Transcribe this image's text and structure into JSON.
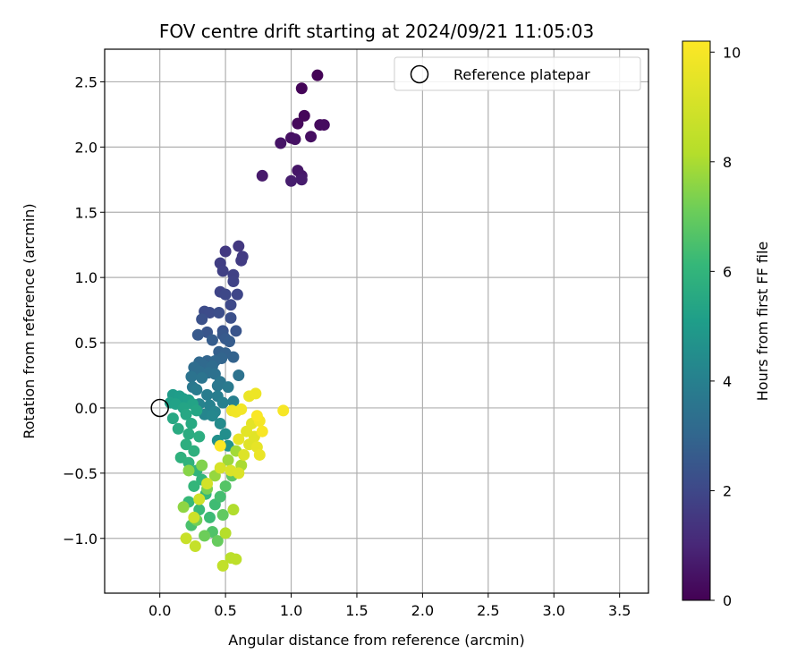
{
  "chart_data": {
    "type": "scatter",
    "title": "FOV centre drift starting at 2024/09/21 11:05:03",
    "xlabel": "Angular distance from reference (arcmin)",
    "ylabel": "Rotation from reference (arcmin)",
    "xlim": [
      -0.42,
      3.72
    ],
    "ylim": [
      -1.42,
      2.75
    ],
    "xticks": [
      "0.0",
      "0.5",
      "1.0",
      "1.5",
      "2.0",
      "2.5",
      "3.0",
      "3.5"
    ],
    "xtick_values": [
      0,
      0.5,
      1.0,
      1.5,
      2.0,
      2.5,
      3.0,
      3.5
    ],
    "yticks": [
      "−1.0",
      "−0.5",
      "0.0",
      "0.5",
      "1.0",
      "1.5",
      "2.0",
      "2.5"
    ],
    "ytick_values": [
      -1.0,
      -0.5,
      0.0,
      0.5,
      1.0,
      1.5,
      2.0,
      2.5
    ],
    "grid": true,
    "legend": {
      "placement": "top-right",
      "entries": [
        "Reference platepar"
      ]
    },
    "reference_point": {
      "x": 0.0,
      "y": 0.0
    },
    "colorbar": {
      "label": "Hours from first FF file",
      "colormap": "viridis",
      "range": [
        0,
        10.2
      ],
      "ticks": [
        "0",
        "2",
        "4",
        "6",
        "8",
        "10"
      ],
      "tick_values": [
        0,
        2,
        4,
        6,
        8,
        10
      ]
    },
    "points": [
      [
        1.2,
        2.55,
        0.05
      ],
      [
        1.08,
        2.45,
        0.1
      ],
      [
        1.1,
        2.24,
        0.15
      ],
      [
        1.05,
        2.18,
        0.2
      ],
      [
        1.22,
        2.17,
        0.25
      ],
      [
        1.25,
        2.17,
        0.3
      ],
      [
        1.15,
        2.08,
        0.35
      ],
      [
        1.0,
        2.07,
        0.4
      ],
      [
        1.03,
        2.06,
        0.45
      ],
      [
        0.92,
        2.03,
        0.5
      ],
      [
        1.05,
        1.82,
        0.55
      ],
      [
        1.08,
        1.78,
        0.6
      ],
      [
        0.78,
        1.78,
        0.65
      ],
      [
        1.08,
        1.75,
        0.7
      ],
      [
        1.0,
        1.74,
        0.75
      ],
      [
        0.6,
        1.24,
        1.5
      ],
      [
        0.5,
        1.2,
        1.55
      ],
      [
        0.63,
        1.16,
        1.6
      ],
      [
        0.62,
        1.13,
        1.65
      ],
      [
        0.46,
        1.11,
        1.7
      ],
      [
        0.48,
        1.05,
        1.75
      ],
      [
        0.56,
        1.02,
        1.8
      ],
      [
        0.56,
        0.97,
        1.85
      ],
      [
        0.46,
        0.89,
        1.9
      ],
      [
        0.59,
        0.87,
        1.95
      ],
      [
        0.5,
        0.87,
        2.0
      ],
      [
        0.54,
        0.79,
        2.05
      ],
      [
        0.34,
        0.74,
        2.1
      ],
      [
        0.38,
        0.73,
        2.15
      ],
      [
        0.45,
        0.73,
        2.2
      ],
      [
        0.54,
        0.69,
        2.25
      ],
      [
        0.32,
        0.68,
        2.3
      ],
      [
        0.48,
        0.59,
        2.35
      ],
      [
        0.58,
        0.59,
        2.4
      ],
      [
        0.36,
        0.58,
        2.45
      ],
      [
        0.48,
        0.56,
        2.5
      ],
      [
        0.29,
        0.56,
        2.55
      ],
      [
        0.5,
        0.53,
        2.6
      ],
      [
        0.53,
        0.51,
        2.65
      ],
      [
        0.4,
        0.52,
        2.7
      ],
      [
        0.45,
        0.43,
        2.8
      ],
      [
        0.5,
        0.42,
        2.85
      ],
      [
        0.56,
        0.39,
        2.9
      ],
      [
        0.47,
        0.38,
        2.95
      ],
      [
        0.36,
        0.36,
        3.0
      ],
      [
        0.42,
        0.36,
        3.05
      ],
      [
        0.3,
        0.35,
        3.1
      ],
      [
        0.33,
        0.33,
        3.15
      ],
      [
        0.4,
        0.32,
        3.2
      ],
      [
        0.26,
        0.31,
        3.25
      ],
      [
        0.3,
        0.28,
        3.3
      ],
      [
        0.37,
        0.27,
        3.35
      ],
      [
        0.42,
        0.26,
        3.4
      ],
      [
        0.6,
        0.25,
        3.45
      ],
      [
        0.24,
        0.24,
        3.5
      ],
      [
        0.32,
        0.23,
        3.55
      ],
      [
        0.46,
        0.2,
        3.6
      ],
      [
        0.44,
        0.17,
        3.65
      ],
      [
        0.25,
        0.16,
        3.7
      ],
      [
        0.52,
        0.16,
        3.75
      ],
      [
        0.28,
        0.14,
        3.8
      ],
      [
        0.36,
        0.1,
        3.85
      ],
      [
        0.44,
        0.09,
        3.9
      ],
      [
        0.56,
        0.05,
        3.95
      ],
      [
        0.48,
        0.04,
        4.0
      ],
      [
        0.38,
        0.02,
        4.05
      ],
      [
        0.3,
        0.03,
        4.1
      ],
      [
        0.42,
        -0.03,
        4.15
      ],
      [
        0.34,
        -0.05,
        4.2
      ],
      [
        0.4,
        -0.06,
        4.25
      ],
      [
        0.58,
        -0.01,
        4.3
      ],
      [
        0.46,
        -0.12,
        4.4
      ],
      [
        0.5,
        -0.2,
        4.5
      ],
      [
        0.44,
        -0.25,
        4.6
      ],
      [
        0.52,
        -0.29,
        4.7
      ],
      [
        0.1,
        0.1,
        5.0
      ],
      [
        0.15,
        0.09,
        5.05
      ],
      [
        0.18,
        0.07,
        5.1
      ],
      [
        0.22,
        0.06,
        5.15
      ],
      [
        0.08,
        0.04,
        5.2
      ],
      [
        0.12,
        0.03,
        5.25
      ],
      [
        0.25,
        0.03,
        5.3
      ],
      [
        0.18,
        0.0,
        5.35
      ],
      [
        0.28,
        -0.02,
        5.4
      ],
      [
        0.2,
        -0.05,
        5.45
      ],
      [
        0.1,
        -0.08,
        5.5
      ],
      [
        0.24,
        -0.12,
        5.55
      ],
      [
        0.14,
        -0.16,
        5.6
      ],
      [
        0.22,
        -0.2,
        5.65
      ],
      [
        0.3,
        -0.22,
        5.7
      ],
      [
        0.2,
        -0.28,
        5.75
      ],
      [
        0.26,
        -0.33,
        5.8
      ],
      [
        0.16,
        -0.38,
        5.85
      ],
      [
        0.22,
        -0.42,
        5.9
      ],
      [
        0.28,
        -0.48,
        5.95
      ],
      [
        0.32,
        -0.55,
        6.0
      ],
      [
        0.26,
        -0.6,
        6.05
      ],
      [
        0.35,
        -0.66,
        6.1
      ],
      [
        0.22,
        -0.72,
        6.15
      ],
      [
        0.3,
        -0.78,
        6.2
      ],
      [
        0.38,
        -0.84,
        6.25
      ],
      [
        0.42,
        -0.74,
        6.3
      ],
      [
        0.46,
        -0.68,
        6.4
      ],
      [
        0.24,
        -0.9,
        6.5
      ],
      [
        0.4,
        -0.95,
        6.6
      ],
      [
        0.5,
        -0.6,
        6.7
      ],
      [
        0.55,
        -0.52,
        6.8
      ],
      [
        0.48,
        -0.82,
        6.9
      ],
      [
        0.44,
        -1.02,
        7.0
      ],
      [
        0.34,
        -0.98,
        7.1
      ],
      [
        0.28,
        -0.86,
        7.2
      ],
      [
        0.36,
        -0.62,
        7.3
      ],
      [
        0.32,
        -0.44,
        7.4
      ],
      [
        0.22,
        -0.48,
        7.5
      ],
      [
        0.18,
        -0.76,
        7.6
      ],
      [
        0.42,
        -0.52,
        7.7
      ],
      [
        0.52,
        -0.4,
        7.8
      ],
      [
        0.58,
        -0.33,
        7.9
      ],
      [
        0.62,
        -0.44,
        8.0
      ],
      [
        0.56,
        -0.78,
        8.1
      ],
      [
        0.5,
        -0.96,
        8.2
      ],
      [
        0.54,
        -1.15,
        8.3
      ],
      [
        0.58,
        -1.16,
        8.4
      ],
      [
        0.48,
        -1.21,
        8.5
      ],
      [
        0.27,
        -1.06,
        8.6
      ],
      [
        0.2,
        -1.0,
        8.7
      ],
      [
        0.26,
        -0.84,
        8.8
      ],
      [
        0.3,
        -0.7,
        8.9
      ],
      [
        0.36,
        -0.58,
        9.0
      ],
      [
        0.46,
        -0.46,
        9.1
      ],
      [
        0.54,
        -0.48,
        9.2
      ],
      [
        0.6,
        -0.5,
        9.25
      ],
      [
        0.64,
        -0.36,
        9.3
      ],
      [
        0.68,
        -0.28,
        9.35
      ],
      [
        0.72,
        -0.22,
        9.4
      ],
      [
        0.66,
        -0.18,
        9.45
      ],
      [
        0.7,
        -0.12,
        9.5
      ],
      [
        0.74,
        -0.3,
        9.55
      ],
      [
        0.6,
        -0.24,
        9.6
      ],
      [
        0.76,
        -0.36,
        9.65
      ],
      [
        0.68,
        0.09,
        9.7
      ],
      [
        0.73,
        0.11,
        9.75
      ],
      [
        0.55,
        -0.02,
        9.8
      ],
      [
        0.58,
        -0.03,
        9.85
      ],
      [
        0.62,
        -0.01,
        9.9
      ],
      [
        0.76,
        -0.1,
        9.95
      ],
      [
        0.94,
        -0.02,
        10.0
      ],
      [
        0.78,
        -0.18,
        10.05
      ],
      [
        0.74,
        -0.06,
        10.1
      ],
      [
        0.46,
        -0.29,
        10.15
      ]
    ]
  }
}
